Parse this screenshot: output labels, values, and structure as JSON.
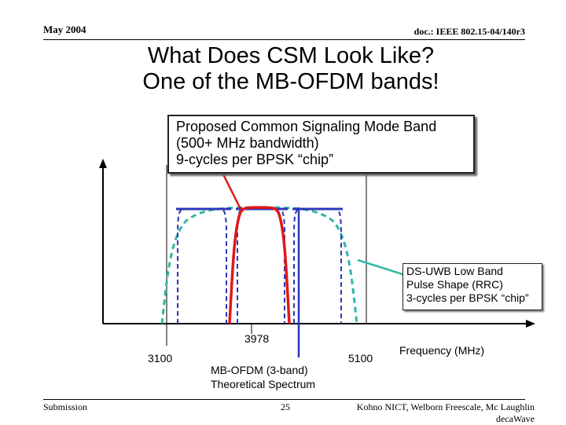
{
  "header": {
    "date": "May 2004",
    "doc_id": "doc.: IEEE 802.15-04/140r3"
  },
  "title": {
    "line1": "What Does CSM Look Like?",
    "line2": "One of the MB-OFDM bands!"
  },
  "callout": {
    "line1": "Proposed Common Signaling Mode Band",
    "line2": "(500+ MHz bandwidth)",
    "line3": "9-cycles per BPSK “chip”"
  },
  "ds_uwb_box": {
    "line1": "DS-UWB Low Band",
    "line2": "Pulse Shape (RRC)",
    "line3": "3-cycles per BPSK “chip”"
  },
  "mb_ofdm_label": {
    "line1": "MB-OFDM (3-band)",
    "line2": "Theoretical Spectrum"
  },
  "axis": {
    "tick_3978": "3978",
    "tick_3100": "3100",
    "tick_5100": "5100",
    "x_label": "Frequency (MHz)"
  },
  "colors": {
    "mb_ofdm": "#2b36b8",
    "csm": "#e01818",
    "ds_uwb": "#30b7a4",
    "axis": "#000000"
  },
  "footer": {
    "left": "Submission",
    "page": "25",
    "authors_line1": "Kohno NICT, Welborn Freescale, Mc Laughlin",
    "authors_line2": "decaWave"
  }
}
